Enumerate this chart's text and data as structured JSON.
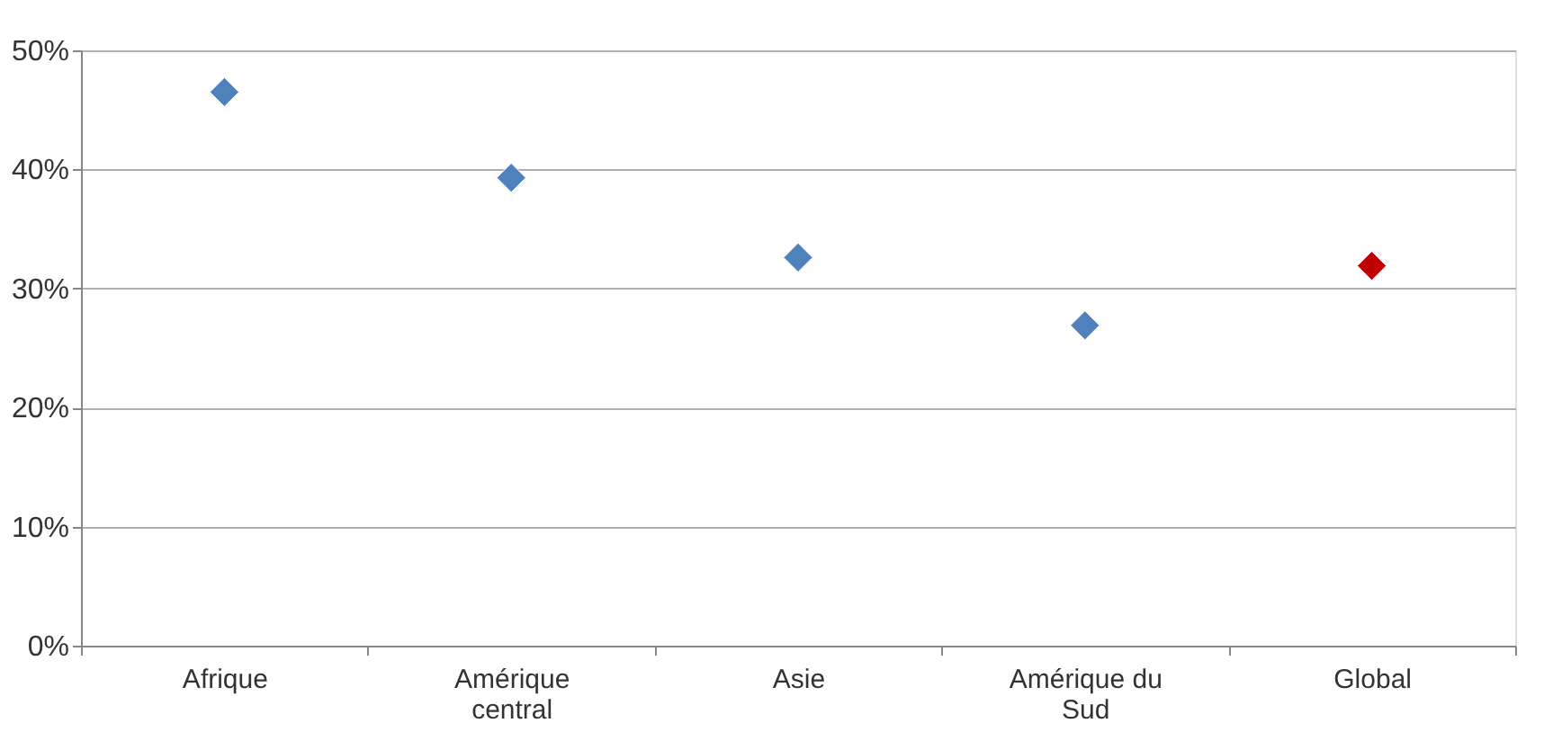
{
  "chart_data": {
    "type": "scatter",
    "categories": [
      "Afrique",
      "Amérique central",
      "Asie",
      "Amérique du Sud",
      "Global"
    ],
    "values": [
      46.5,
      39.3,
      32.6,
      26.9,
      31.9
    ],
    "colors": [
      "#4f81bd",
      "#4f81bd",
      "#4f81bd",
      "#4f81bd",
      "#c00000"
    ],
    "ylim": [
      0,
      50
    ],
    "yticks": [
      {
        "value": 0,
        "label": "0%"
      },
      {
        "value": 10,
        "label": "10%"
      },
      {
        "value": 20,
        "label": "20%"
      },
      {
        "value": 30,
        "label": "30%"
      },
      {
        "value": 40,
        "label": "40%"
      },
      {
        "value": 50,
        "label": "50%"
      }
    ],
    "grid": "y",
    "marker": "diamond"
  }
}
